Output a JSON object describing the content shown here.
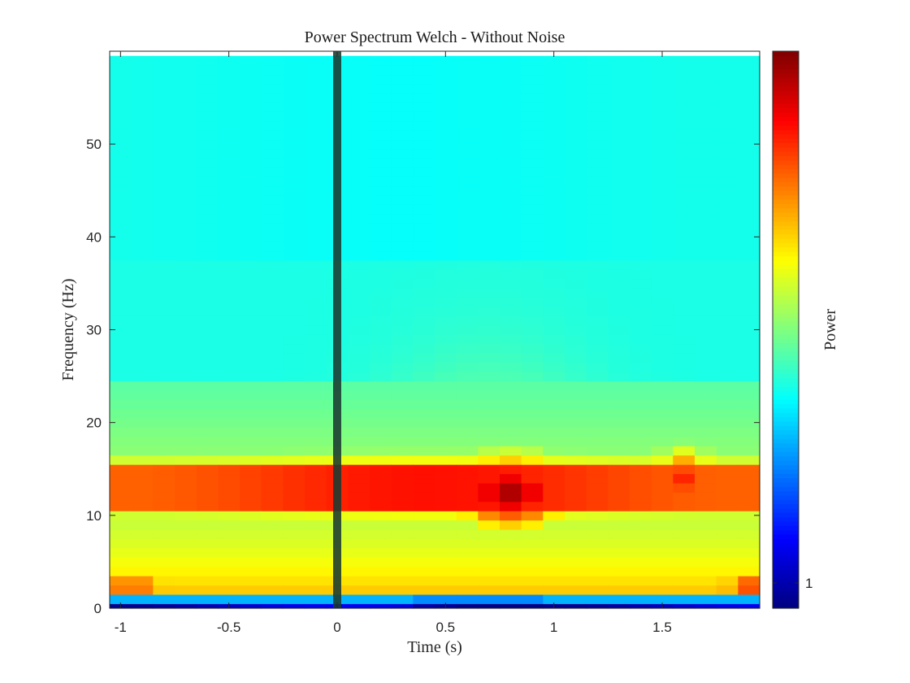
{
  "chart_data": {
    "type": "heatmap",
    "title": "Power Spectrum Welch - Without Noise",
    "xlabel": "Time (s)",
    "ylabel": "Frequency (Hz)",
    "colorbar_label": "Power",
    "colorbar_ticks": [
      1
    ],
    "colorbar_tick_labels": [
      "1"
    ],
    "colormap": "jet",
    "xlim": [
      -1.05,
      1.95
    ],
    "ylim": [
      0,
      60
    ],
    "xticks": [
      -1,
      -0.5,
      0,
      0.5,
      1,
      1.5
    ],
    "xtick_labels": [
      "-1",
      "-0.5",
      "0",
      "0.5",
      "1",
      "1.5"
    ],
    "yticks": [
      0,
      10,
      20,
      30,
      40,
      50
    ],
    "ytick_labels": [
      "0",
      "10",
      "20",
      "30",
      "40",
      "50"
    ],
    "time_start": -1.0,
    "time_step": 0.1,
    "time_count": 30,
    "freq_step": 1,
    "freq_count": 60,
    "event_marker": {
      "x": 0,
      "color": "#1a3a30"
    },
    "features": {
      "baseline_alpha_beta_band_hz": [
        10,
        16
      ],
      "burst_center_s": 0.8,
      "burst_center_hz": 12.5,
      "secondary_burst_center_s": 1.6,
      "secondary_burst_center_hz": 14
    },
    "grid": false
  }
}
